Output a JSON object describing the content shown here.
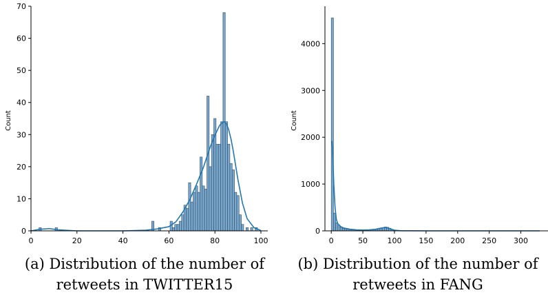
{
  "chart_data": [
    {
      "type": "bar",
      "title": "",
      "xlabel": "",
      "ylabel": "Count",
      "xlim": [
        0,
        103
      ],
      "ylim": [
        0,
        70
      ],
      "xticks": [
        0,
        20,
        40,
        60,
        80,
        100
      ],
      "yticks": [
        0,
        10,
        20,
        30,
        40,
        50,
        60,
        70
      ],
      "grid": false,
      "bar_color": "#7aa7cc",
      "edge_color": "#2f4b66",
      "kde_color": "#1f77b4",
      "bins": [
        {
          "x0": 3.5,
          "x1": 4.5,
          "count": 1
        },
        {
          "x0": 10.5,
          "x1": 11.5,
          "count": 1
        },
        {
          "x0": 52.5,
          "x1": 53.5,
          "count": 3
        },
        {
          "x0": 55.5,
          "x1": 56.5,
          "count": 1
        },
        {
          "x0": 60.5,
          "x1": 61.5,
          "count": 3
        },
        {
          "x0": 61.5,
          "x1": 62.5,
          "count": 1
        },
        {
          "x0": 62.5,
          "x1": 63.5,
          "count": 2
        },
        {
          "x0": 63.5,
          "x1": 64.5,
          "count": 2
        },
        {
          "x0": 64.5,
          "x1": 65.5,
          "count": 3
        },
        {
          "x0": 65.5,
          "x1": 66.5,
          "count": 5
        },
        {
          "x0": 66.5,
          "x1": 67.5,
          "count": 8
        },
        {
          "x0": 67.5,
          "x1": 68.5,
          "count": 7
        },
        {
          "x0": 68.5,
          "x1": 69.5,
          "count": 15
        },
        {
          "x0": 69.5,
          "x1": 70.5,
          "count": 9
        },
        {
          "x0": 70.5,
          "x1": 71.5,
          "count": 12
        },
        {
          "x0": 71.5,
          "x1": 72.5,
          "count": 14
        },
        {
          "x0": 72.5,
          "x1": 73.5,
          "count": 12
        },
        {
          "x0": 73.5,
          "x1": 74.5,
          "count": 23
        },
        {
          "x0": 74.5,
          "x1": 75.5,
          "count": 14
        },
        {
          "x0": 75.5,
          "x1": 76.5,
          "count": 13
        },
        {
          "x0": 76.5,
          "x1": 77.5,
          "count": 42
        },
        {
          "x0": 77.5,
          "x1": 78.5,
          "count": 20
        },
        {
          "x0": 78.5,
          "x1": 79.5,
          "count": 30
        },
        {
          "x0": 79.5,
          "x1": 80.5,
          "count": 35
        },
        {
          "x0": 80.5,
          "x1": 81.5,
          "count": 27
        },
        {
          "x0": 81.5,
          "x1": 82.5,
          "count": 27
        },
        {
          "x0": 82.5,
          "x1": 83.5,
          "count": 34
        },
        {
          "x0": 83.5,
          "x1": 84.5,
          "count": 68
        },
        {
          "x0": 84.5,
          "x1": 85.5,
          "count": 34
        },
        {
          "x0": 85.5,
          "x1": 86.5,
          "count": 27
        },
        {
          "x0": 86.5,
          "x1": 87.5,
          "count": 21
        },
        {
          "x0": 87.5,
          "x1": 88.5,
          "count": 19
        },
        {
          "x0": 88.5,
          "x1": 89.5,
          "count": 12
        },
        {
          "x0": 89.5,
          "x1": 90.5,
          "count": 11
        },
        {
          "x0": 90.5,
          "x1": 91.5,
          "count": 5
        },
        {
          "x0": 91.5,
          "x1": 92.5,
          "count": 2
        },
        {
          "x0": 93.5,
          "x1": 94.5,
          "count": 1
        },
        {
          "x0": 95.5,
          "x1": 96.5,
          "count": 1
        },
        {
          "x0": 97.5,
          "x1": 98.5,
          "count": 1
        }
      ],
      "kde": {
        "x": [
          0,
          4,
          8,
          12,
          20,
          40,
          50,
          55,
          60,
          63,
          66,
          69,
          72,
          75,
          78,
          80,
          82,
          83,
          84,
          85,
          86,
          87,
          88,
          90,
          92,
          94,
          97,
          100
        ],
        "y": [
          0,
          0.5,
          0.7,
          0.3,
          0,
          0,
          0.2,
          0.6,
          1.3,
          2.8,
          5.8,
          9.6,
          14.5,
          19.8,
          26.2,
          29.8,
          32.8,
          33.6,
          34.0,
          33.4,
          31.5,
          28.6,
          24.8,
          16.0,
          8.6,
          3.8,
          1.0,
          0.1
        ]
      }
    },
    {
      "type": "bar",
      "title": "",
      "xlabel": "",
      "ylabel": "Count",
      "xlim": [
        -10,
        343
      ],
      "ylim": [
        0,
        4800
      ],
      "xticks": [
        0,
        50,
        100,
        150,
        200,
        250,
        300
      ],
      "yticks": [
        0,
        1000,
        2000,
        3000,
        4000
      ],
      "grid": false,
      "bar_color": "#7aa7cc",
      "edge_color": "#2f4b66",
      "kde_color": "#1f77b4",
      "bins": [
        {
          "x0": 0,
          "x1": 3.5,
          "count": 4550
        },
        {
          "x0": 3.5,
          "x1": 7,
          "count": 380
        },
        {
          "x0": 7,
          "x1": 10.5,
          "count": 170
        },
        {
          "x0": 10.5,
          "x1": 14,
          "count": 110
        },
        {
          "x0": 14,
          "x1": 17.5,
          "count": 75
        },
        {
          "x0": 17.5,
          "x1": 21,
          "count": 55
        },
        {
          "x0": 21,
          "x1": 24.5,
          "count": 45
        },
        {
          "x0": 24.5,
          "x1": 28,
          "count": 35
        },
        {
          "x0": 28,
          "x1": 31.5,
          "count": 28
        },
        {
          "x0": 31.5,
          "x1": 35,
          "count": 22
        },
        {
          "x0": 35,
          "x1": 38.5,
          "count": 18
        },
        {
          "x0": 38.5,
          "x1": 42,
          "count": 15
        },
        {
          "x0": 42,
          "x1": 45.5,
          "count": 13
        },
        {
          "x0": 45.5,
          "x1": 49,
          "count": 12
        },
        {
          "x0": 49,
          "x1": 52.5,
          "count": 12
        },
        {
          "x0": 52.5,
          "x1": 56,
          "count": 13
        },
        {
          "x0": 56,
          "x1": 59.5,
          "count": 14
        },
        {
          "x0": 59.5,
          "x1": 63,
          "count": 16
        },
        {
          "x0": 63,
          "x1": 66.5,
          "count": 20
        },
        {
          "x0": 66.5,
          "x1": 70,
          "count": 25
        },
        {
          "x0": 70,
          "x1": 73.5,
          "count": 32
        },
        {
          "x0": 73.5,
          "x1": 77,
          "count": 42
        },
        {
          "x0": 77,
          "x1": 80.5,
          "count": 55
        },
        {
          "x0": 80.5,
          "x1": 84,
          "count": 70
        },
        {
          "x0": 84,
          "x1": 87.5,
          "count": 82
        },
        {
          "x0": 87.5,
          "x1": 91,
          "count": 75
        },
        {
          "x0": 91,
          "x1": 94.5,
          "count": 55
        },
        {
          "x0": 94.5,
          "x1": 98,
          "count": 30
        },
        {
          "x0": 98,
          "x1": 101.5,
          "count": 12
        },
        {
          "x0": 101.5,
          "x1": 105,
          "count": 6
        }
      ],
      "kde": {
        "x": [
          1,
          2,
          4,
          6,
          8,
          10,
          15,
          20,
          30,
          40,
          50,
          60,
          70,
          80,
          85,
          90,
          95,
          100,
          110,
          150,
          200,
          250,
          300,
          330
        ],
        "y": [
          1920,
          1750,
          1000,
          500,
          250,
          160,
          90,
          60,
          35,
          22,
          18,
          22,
          35,
          62,
          72,
          62,
          35,
          14,
          3,
          0,
          0,
          0,
          0,
          0
        ]
      }
    }
  ],
  "captions": {
    "a_line1": "(a) Distribution of the number of",
    "a_line2": "retweets in TWITTER15",
    "b_line1": "(b) Distribution of the number of",
    "b_line2": "retweets in FANG"
  }
}
